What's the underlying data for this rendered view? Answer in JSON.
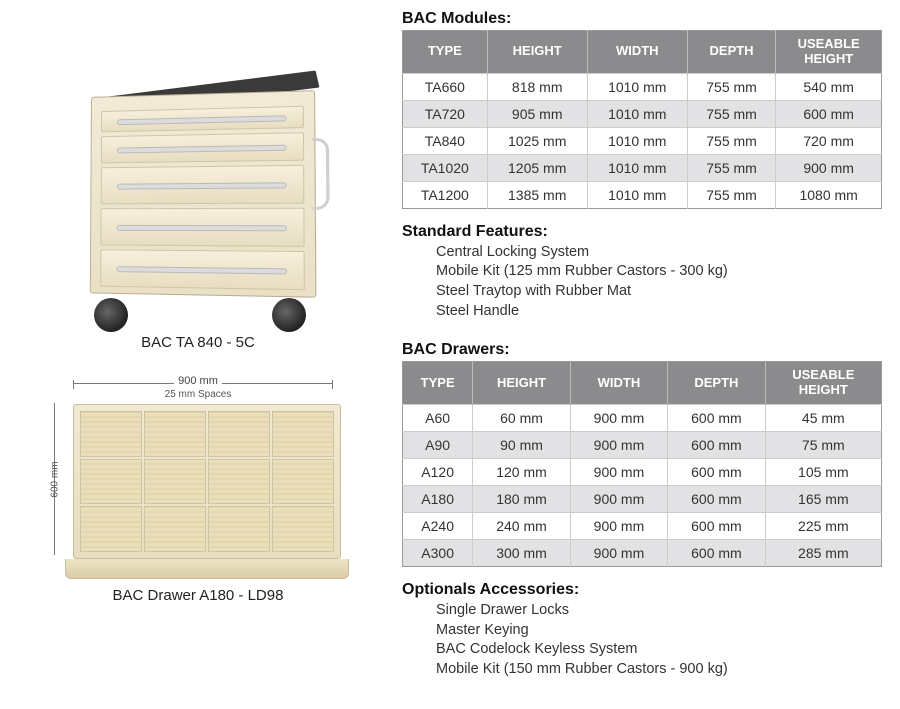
{
  "left": {
    "cabinet_caption": "BAC TA 840 - 5C",
    "tray_caption": "BAC Drawer A180 - LD98",
    "dim_width": "900 mm",
    "dim_spaces": "25 mm Spaces",
    "dim_depth": "600 mm"
  },
  "modules": {
    "title": "BAC Modules:",
    "columns": [
      "TYPE",
      "HEIGHT",
      "WIDTH",
      "DEPTH",
      "USEABLE HEIGHT"
    ],
    "rows": [
      [
        "TA660",
        "818 mm",
        "1010 mm",
        "755 mm",
        "540 mm"
      ],
      [
        "TA720",
        "905 mm",
        "1010 mm",
        "755 mm",
        "600 mm"
      ],
      [
        "TA840",
        "1025 mm",
        "1010 mm",
        "755 mm",
        "720 mm"
      ],
      [
        "TA1020",
        "1205 mm",
        "1010 mm",
        "755 mm",
        "900 mm"
      ],
      [
        "TA1200",
        "1385 mm",
        "1010 mm",
        "755 mm",
        "1080 mm"
      ]
    ]
  },
  "features": {
    "title": "Standard Features:",
    "items": [
      "Central Locking System",
      "Mobile Kit (125 mm Rubber Castors - 300 kg)",
      "Steel Traytop with Rubber Mat",
      "Steel Handle"
    ]
  },
  "drawers": {
    "title": "BAC Drawers:",
    "columns": [
      "TYPE",
      "HEIGHT",
      "WIDTH",
      "DEPTH",
      "USEABLE HEIGHT"
    ],
    "rows": [
      [
        "A60",
        "60 mm",
        "900 mm",
        "600 mm",
        "45 mm"
      ],
      [
        "A90",
        "90 mm",
        "900 mm",
        "600 mm",
        "75 mm"
      ],
      [
        "A120",
        "120 mm",
        "900 mm",
        "600 mm",
        "105 mm"
      ],
      [
        "A180",
        "180 mm",
        "900 mm",
        "600 mm",
        "165 mm"
      ],
      [
        "A240",
        "240 mm",
        "900 mm",
        "600 mm",
        "225 mm"
      ],
      [
        "A300",
        "300 mm",
        "900 mm",
        "600 mm",
        "285 mm"
      ]
    ]
  },
  "optional": {
    "title": "Optionals Accessories:",
    "items": [
      "Single Drawer Locks",
      "Master Keying",
      "BAC Codelock Keyless System",
      "Mobile Kit (150 mm Rubber Castors - 900 kg)"
    ]
  },
  "style": {
    "header_bg": "#8b8b8d",
    "header_fg": "#ffffff",
    "row_odd": "#ffffff",
    "row_even": "#e2e2e4",
    "border": "#999999"
  }
}
